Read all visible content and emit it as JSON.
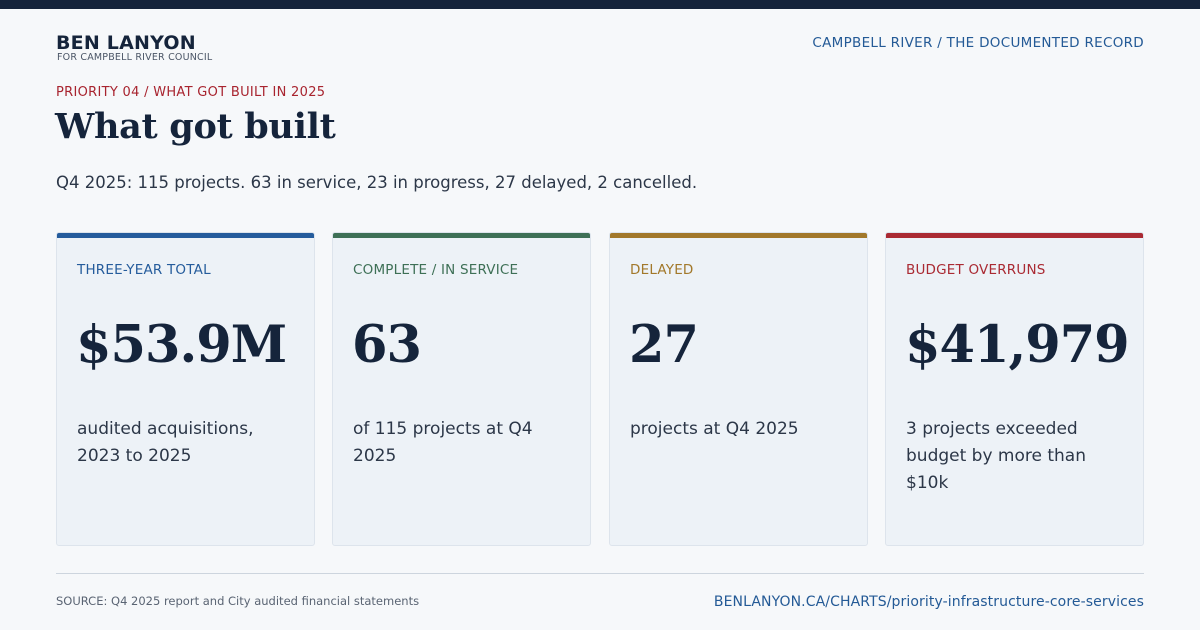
{
  "brand": {
    "name": "BEN LANYON",
    "subtitle": "FOR CAMPBELL RIVER COUNCIL"
  },
  "site_title": "CAMPBELL RIVER / THE DOCUMENTED RECORD",
  "eyebrow": "PRIORITY 04 / WHAT GOT BUILT IN 2025",
  "headline": "What got built",
  "summary": "Q4 2025: 115 projects. 63 in service, 23 in progress, 27 delayed, 2 cancelled.",
  "cards": [
    {
      "label": "THREE-YEAR TOTAL",
      "value": "$53.9M",
      "desc": "audited acquisitions, 2023 to 2025",
      "accent_color": "#255c9c"
    },
    {
      "label": "COMPLETE / IN SERVICE",
      "value": "63",
      "desc": "of 115 projects at Q4 2025",
      "accent_color": "#3e7056"
    },
    {
      "label": "DELAYED",
      "value": "27",
      "desc": "projects at Q4 2025",
      "accent_color": "#a2782a"
    },
    {
      "label": "BUDGET OVERRUNS",
      "value": "$41,979",
      "desc": "3 projects exceeded budget by more than $10k",
      "accent_color": "#aa2a33"
    }
  ],
  "footer": {
    "source": "SOURCE: Q4 2025 report and City audited financial statements",
    "url": "BENLANYON.CA/CHARTS/priority-infrastructure-core-services"
  }
}
